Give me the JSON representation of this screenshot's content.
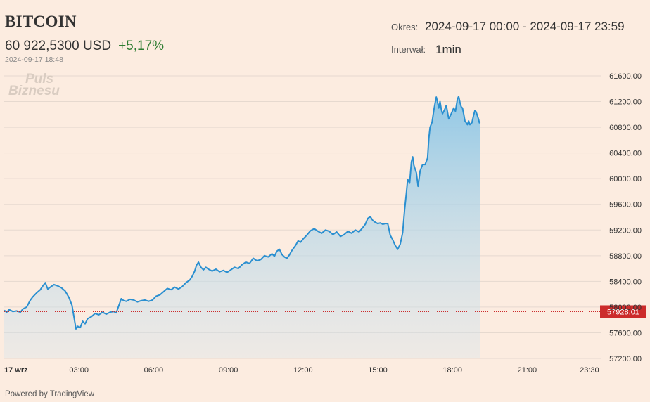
{
  "header": {
    "title": "BITCOIN",
    "price": "60 922,5300 USD",
    "change": "+5,17%",
    "timestamp": "2024-09-17 18:48",
    "period_label": "Okres:",
    "period_value": "2024-09-17 00:00 - 2024-09-17 23:59",
    "interval_label": "Interwał:",
    "interval_value": "1min"
  },
  "watermark": {
    "line1": "Puls",
    "line2": "Biznesu"
  },
  "footer": {
    "powered_by": "Powered by TradingView"
  },
  "colors": {
    "background": "#fcece0",
    "line": "#2a8fd0",
    "area_top": "#8cc6e6",
    "price_marker": "#cc2b2b",
    "change_positive": "#2e7d32",
    "grid": "#e6d9cf"
  },
  "chart_data": {
    "type": "area",
    "title": "BITCOIN",
    "xlabel": "",
    "ylabel": "",
    "x_ticks": [
      "17 wrz",
      "03:00",
      "06:00",
      "09:00",
      "12:00",
      "15:00",
      "18:00",
      "21:00",
      "23:30"
    ],
    "x_tick_hours": [
      0,
      3,
      6,
      9,
      12,
      15,
      18,
      21,
      23.5
    ],
    "y_ticks": [
      "57200.00",
      "57600.00",
      "58000.00",
      "58400.00",
      "58800.00",
      "59200.00",
      "59600.00",
      "60000.00",
      "60400.00",
      "60800.00",
      "61200.00",
      "61600.00"
    ],
    "y_tick_values": [
      57200,
      57600,
      58000,
      58400,
      58800,
      59200,
      59600,
      60000,
      60400,
      60800,
      61200,
      61600
    ],
    "xlim_hours": [
      0,
      23.98
    ],
    "ylim": [
      57200,
      61640
    ],
    "reference_line": {
      "value": 57928.01,
      "label": "57928.01"
    },
    "grid": true,
    "series": [
      {
        "points": [
          [
            0.0,
            57950
          ],
          [
            0.1,
            57920
          ],
          [
            0.2,
            57960
          ],
          [
            0.35,
            57930
          ],
          [
            0.5,
            57940
          ],
          [
            0.65,
            57920
          ],
          [
            0.75,
            57970
          ],
          [
            0.9,
            58000
          ],
          [
            1.05,
            58110
          ],
          [
            1.15,
            58160
          ],
          [
            1.3,
            58220
          ],
          [
            1.45,
            58270
          ],
          [
            1.55,
            58330
          ],
          [
            1.65,
            58380
          ],
          [
            1.75,
            58280
          ],
          [
            1.85,
            58310
          ],
          [
            2.0,
            58350
          ],
          [
            2.15,
            58330
          ],
          [
            2.3,
            58300
          ],
          [
            2.45,
            58250
          ],
          [
            2.6,
            58150
          ],
          [
            2.72,
            58030
          ],
          [
            2.8,
            57850
          ],
          [
            2.88,
            57660
          ],
          [
            2.95,
            57700
          ],
          [
            3.05,
            57680
          ],
          [
            3.15,
            57780
          ],
          [
            3.25,
            57740
          ],
          [
            3.35,
            57820
          ],
          [
            3.5,
            57850
          ],
          [
            3.65,
            57900
          ],
          [
            3.8,
            57880
          ],
          [
            3.95,
            57920
          ],
          [
            4.1,
            57890
          ],
          [
            4.25,
            57920
          ],
          [
            4.4,
            57930
          ],
          [
            4.5,
            57910
          ],
          [
            4.6,
            58020
          ],
          [
            4.7,
            58130
          ],
          [
            4.8,
            58100
          ],
          [
            4.9,
            58090
          ],
          [
            5.05,
            58120
          ],
          [
            5.2,
            58110
          ],
          [
            5.35,
            58080
          ],
          [
            5.5,
            58100
          ],
          [
            5.65,
            58110
          ],
          [
            5.8,
            58090
          ],
          [
            5.95,
            58110
          ],
          [
            6.1,
            58170
          ],
          [
            6.25,
            58190
          ],
          [
            6.4,
            58240
          ],
          [
            6.55,
            58290
          ],
          [
            6.7,
            58270
          ],
          [
            6.85,
            58310
          ],
          [
            7.0,
            58280
          ],
          [
            7.15,
            58320
          ],
          [
            7.3,
            58380
          ],
          [
            7.45,
            58420
          ],
          [
            7.55,
            58480
          ],
          [
            7.65,
            58560
          ],
          [
            7.72,
            58650
          ],
          [
            7.8,
            58700
          ],
          [
            7.9,
            58620
          ],
          [
            8.0,
            58580
          ],
          [
            8.1,
            58620
          ],
          [
            8.2,
            58590
          ],
          [
            8.35,
            58560
          ],
          [
            8.5,
            58590
          ],
          [
            8.65,
            58550
          ],
          [
            8.8,
            58570
          ],
          [
            8.95,
            58540
          ],
          [
            9.1,
            58580
          ],
          [
            9.25,
            58620
          ],
          [
            9.4,
            58600
          ],
          [
            9.55,
            58660
          ],
          [
            9.7,
            58700
          ],
          [
            9.85,
            58680
          ],
          [
            10.0,
            58760
          ],
          [
            10.15,
            58720
          ],
          [
            10.3,
            58740
          ],
          [
            10.45,
            58800
          ],
          [
            10.6,
            58780
          ],
          [
            10.75,
            58830
          ],
          [
            10.85,
            58790
          ],
          [
            10.95,
            58870
          ],
          [
            11.05,
            58900
          ],
          [
            11.15,
            58820
          ],
          [
            11.25,
            58780
          ],
          [
            11.35,
            58760
          ],
          [
            11.45,
            58810
          ],
          [
            11.55,
            58880
          ],
          [
            11.7,
            58960
          ],
          [
            11.8,
            59030
          ],
          [
            11.9,
            59010
          ],
          [
            12.0,
            59060
          ],
          [
            12.15,
            59120
          ],
          [
            12.3,
            59190
          ],
          [
            12.45,
            59220
          ],
          [
            12.6,
            59180
          ],
          [
            12.75,
            59150
          ],
          [
            12.9,
            59200
          ],
          [
            13.05,
            59180
          ],
          [
            13.2,
            59130
          ],
          [
            13.35,
            59170
          ],
          [
            13.5,
            59100
          ],
          [
            13.65,
            59130
          ],
          [
            13.8,
            59180
          ],
          [
            13.95,
            59150
          ],
          [
            14.1,
            59200
          ],
          [
            14.25,
            59170
          ],
          [
            14.4,
            59240
          ],
          [
            14.5,
            59290
          ],
          [
            14.6,
            59380
          ],
          [
            14.7,
            59410
          ],
          [
            14.8,
            59350
          ],
          [
            14.9,
            59320
          ],
          [
            15.0,
            59300
          ],
          [
            15.1,
            59310
          ],
          [
            15.2,
            59290
          ],
          [
            15.3,
            59300
          ],
          [
            15.4,
            59300
          ],
          [
            15.5,
            59120
          ],
          [
            15.6,
            59050
          ],
          [
            15.7,
            58960
          ],
          [
            15.8,
            58900
          ],
          [
            15.9,
            58980
          ],
          [
            16.0,
            59160
          ],
          [
            16.08,
            59520
          ],
          [
            16.15,
            59780
          ],
          [
            16.2,
            59990
          ],
          [
            16.28,
            59930
          ],
          [
            16.35,
            60260
          ],
          [
            16.4,
            60340
          ],
          [
            16.45,
            60210
          ],
          [
            16.55,
            60090
          ],
          [
            16.62,
            59880
          ],
          [
            16.7,
            60120
          ],
          [
            16.8,
            60220
          ],
          [
            16.9,
            60220
          ],
          [
            17.0,
            60320
          ],
          [
            17.05,
            60630
          ],
          [
            17.1,
            60800
          ],
          [
            17.18,
            60880
          ],
          [
            17.25,
            61060
          ],
          [
            17.3,
            61170
          ],
          [
            17.35,
            61270
          ],
          [
            17.4,
            61190
          ],
          [
            17.45,
            61100
          ],
          [
            17.5,
            61200
          ],
          [
            17.55,
            61080
          ],
          [
            17.6,
            61010
          ],
          [
            17.68,
            61070
          ],
          [
            17.75,
            61140
          ],
          [
            17.85,
            60930
          ],
          [
            17.95,
            61010
          ],
          [
            18.05,
            61100
          ],
          [
            18.12,
            61050
          ],
          [
            18.2,
            61240
          ],
          [
            18.25,
            61280
          ],
          [
            18.3,
            61190
          ],
          [
            18.35,
            61120
          ],
          [
            18.4,
            61100
          ],
          [
            18.45,
            61010
          ],
          [
            18.5,
            60900
          ],
          [
            18.55,
            60870
          ],
          [
            18.6,
            60840
          ],
          [
            18.65,
            60900
          ],
          [
            18.7,
            60840
          ],
          [
            18.78,
            60870
          ],
          [
            18.85,
            60990
          ],
          [
            18.9,
            61060
          ],
          [
            18.95,
            61040
          ],
          [
            19.0,
            60980
          ],
          [
            19.05,
            60920
          ],
          [
            19.08,
            60870
          ],
          [
            19.12,
            60890
          ]
        ]
      }
    ]
  }
}
